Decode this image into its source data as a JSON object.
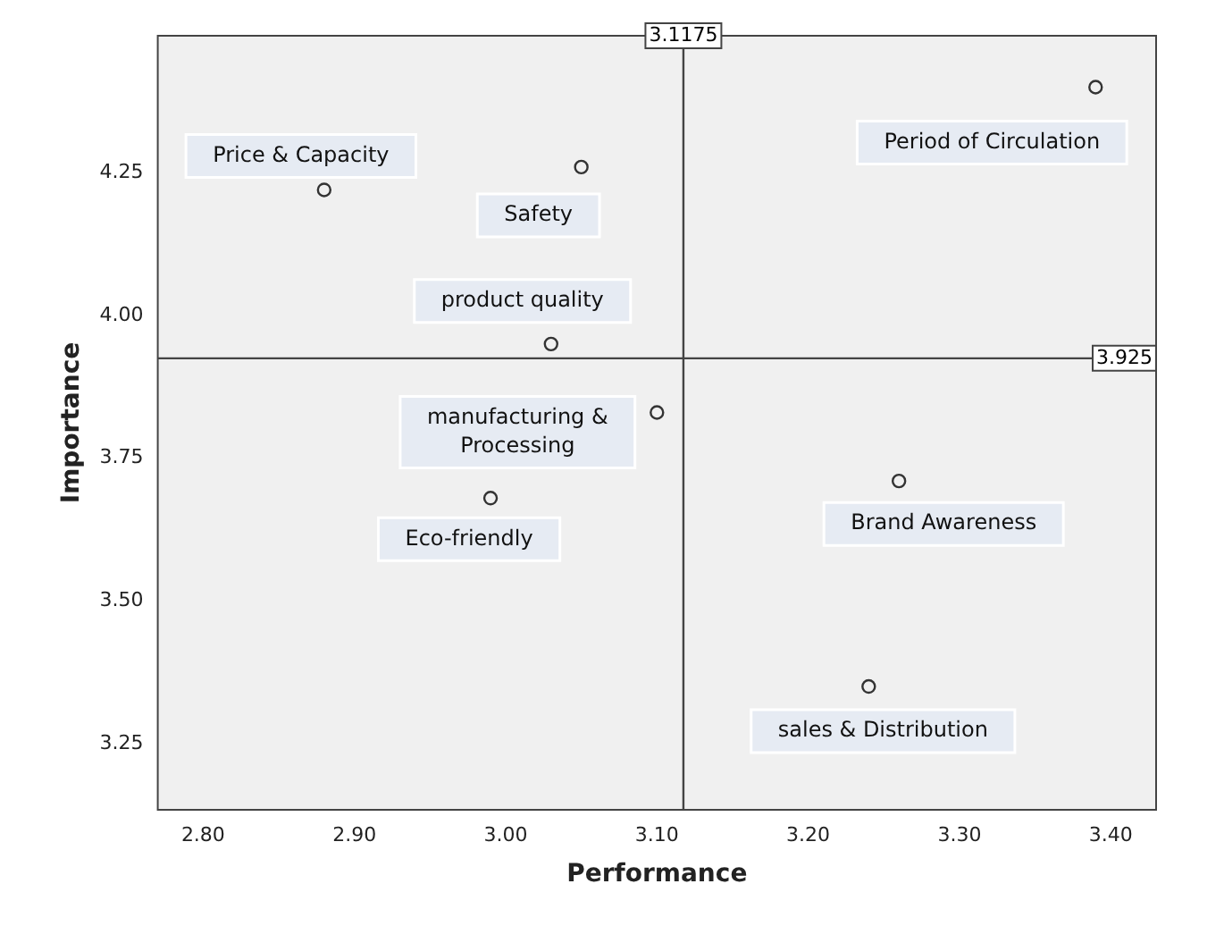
{
  "chart_data": {
    "type": "scatter",
    "xlabel": "Performance",
    "ylabel": "Importance",
    "x": [
      2.88,
      3.05,
      3.39,
      3.03,
      3.1,
      2.99,
      3.26,
      3.24
    ],
    "values": [
      4.22,
      4.26,
      4.4,
      3.95,
      3.83,
      3.68,
      3.71,
      3.35
    ],
    "color": "#333333",
    "marker": "circle",
    "grid": false,
    "legend": false,
    "xlim": [
      2.77,
      3.43
    ],
    "ylim": [
      3.134,
      4.49
    ],
    "xticks": [
      {
        "value": 2.8,
        "label": "2.80"
      },
      {
        "value": 2.9,
        "label": "2.90"
      },
      {
        "value": 3.0,
        "label": "3.00"
      },
      {
        "value": 3.1,
        "label": "3.10"
      },
      {
        "value": 3.2,
        "label": "3.20"
      },
      {
        "value": 3.3,
        "label": "3.30"
      },
      {
        "value": 3.4,
        "label": "3.40"
      }
    ],
    "yticks": [
      3.25,
      {
        "value": 3.5,
        "label": "3.50"
      },
      3.75,
      {
        "value": 4.0,
        "label": "4.00"
      },
      4.25
    ],
    "ref_lines": [
      {
        "axis": "x",
        "value": 3.1175,
        "label": "3.1175"
      },
      {
        "axis": "y",
        "value": 3.925,
        "label": "3.925"
      }
    ],
    "annotations": [
      {
        "text": "Price & Capacity",
        "x": 2.88,
        "y": 4.22
      },
      {
        "text": "Safety",
        "x": 3.05,
        "y": 4.26
      },
      {
        "text": "Period of Circulation",
        "x": 3.39,
        "y": 4.4
      },
      {
        "text": "product quality",
        "x": 3.03,
        "y": 3.95
      },
      {
        "text": "manufacturing &\nProcessing",
        "x": 3.1,
        "y": 3.83
      },
      {
        "text": "Eco-friendly",
        "x": 2.99,
        "y": 3.68
      },
      {
        "text": "Brand Awareness",
        "x": 3.26,
        "y": 3.71
      },
      {
        "text": "sales & Distribution",
        "x": 3.24,
        "y": 3.35
      }
    ]
  }
}
